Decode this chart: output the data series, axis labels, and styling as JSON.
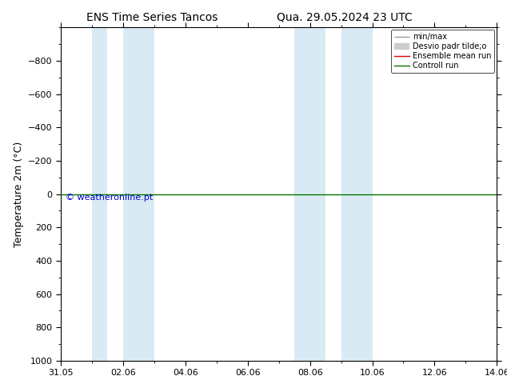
{
  "title_left": "ENS Time Series Tancos",
  "title_right": "Qua. 29.05.2024 23 UTC",
  "ylabel": "Temperature 2m (°C)",
  "ylim": [
    -1000,
    1000
  ],
  "yticks": [
    -800,
    -600,
    -400,
    -200,
    0,
    200,
    400,
    600,
    800,
    1000
  ],
  "xlim": [
    0,
    14
  ],
  "xtick_labels": [
    "31.05",
    "02.06",
    "04.06",
    "06.06",
    "08.06",
    "10.06",
    "12.06",
    "14.06"
  ],
  "xtick_positions": [
    0,
    2,
    4,
    6,
    8,
    10,
    12,
    14
  ],
  "green_line_y": 0,
  "shaded_regions": [
    {
      "xmin": 1.0,
      "xmax": 1.5
    },
    {
      "xmin": 2.0,
      "xmax": 3.0
    },
    {
      "xmin": 7.5,
      "xmax": 8.5
    },
    {
      "xmin": 9.0,
      "xmax": 10.0
    }
  ],
  "shade_color": "#daeaf5",
  "legend_items": [
    {
      "label": "min/max",
      "color": "#999999",
      "linewidth": 1.0
    },
    {
      "label": "Desvio padr tilde;o",
      "color": "#cccccc",
      "linewidth": 6
    },
    {
      "label": "Ensemble mean run",
      "color": "#dd0000",
      "linewidth": 1.0
    },
    {
      "label": "Controll run",
      "color": "#007700",
      "linewidth": 1.0
    }
  ],
  "watermark": "© weatheronline.pt",
  "watermark_color": "#0000cc",
  "background_color": "#ffffff",
  "title_fontsize": 10,
  "axis_label_fontsize": 9,
  "tick_fontsize": 8,
  "legend_fontsize": 7
}
